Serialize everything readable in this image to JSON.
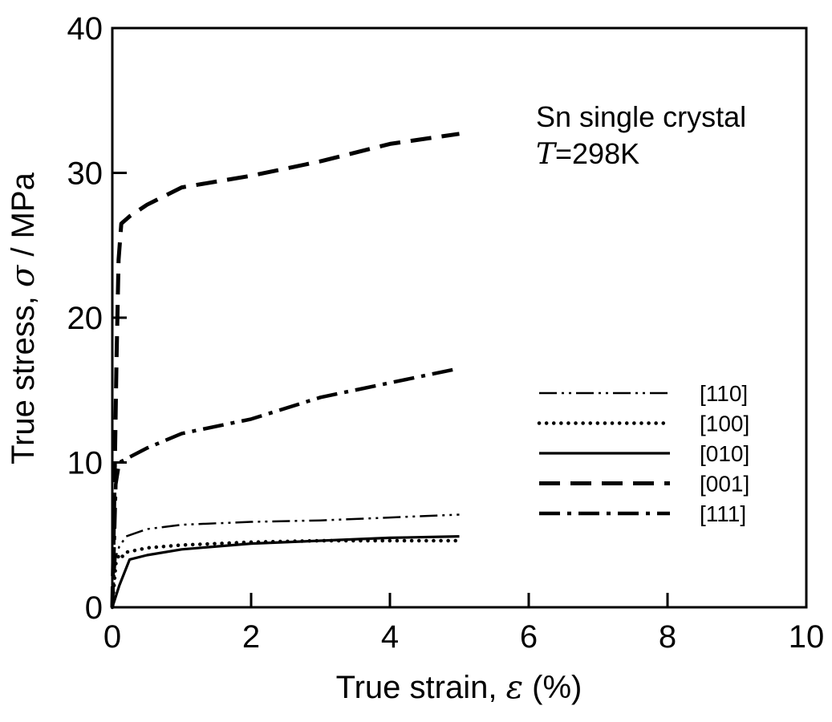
{
  "chart_data": {
    "type": "line",
    "xlabel_prefix": "True strain, ",
    "xlabel_symbol": "ε",
    "xlabel_suffix": " (%)",
    "ylabel_prefix": "True stress, ",
    "ylabel_symbol": "σ",
    "ylabel_suffix": " / MPa",
    "xlim": [
      0,
      10
    ],
    "ylim": [
      0,
      40
    ],
    "xticks": [
      0,
      2,
      4,
      6,
      8,
      10
    ],
    "yticks": [
      0,
      10,
      20,
      30,
      40
    ],
    "grid": false,
    "legend_position": "right",
    "annotation": {
      "line1": "Sn single crystal",
      "line2_symbol": "T",
      "line2_rest": "=298K"
    },
    "series": [
      {
        "name": "[110]",
        "style": "dash-dot-dot",
        "x": [
          0,
          0.05,
          0.1,
          0.2,
          0.5,
          1.0,
          2.0,
          3.0,
          4.0,
          5.0
        ],
        "y": [
          0,
          3.5,
          4.2,
          4.9,
          5.4,
          5.7,
          5.9,
          6.0,
          6.2,
          6.4
        ]
      },
      {
        "name": "[100]",
        "style": "dotted",
        "x": [
          0,
          0.05,
          0.1,
          0.15,
          0.2,
          0.3,
          0.5,
          1.0,
          2.0,
          3.0,
          4.0,
          5.0
        ],
        "y": [
          0,
          3.0,
          3.7,
          3.5,
          3.8,
          3.9,
          4.1,
          4.3,
          4.5,
          4.6,
          4.6,
          4.6
        ]
      },
      {
        "name": "[010]",
        "style": "solid",
        "x": [
          0,
          0.1,
          0.25,
          0.5,
          1.0,
          2.0,
          3.0,
          4.0,
          5.0
        ],
        "y": [
          0,
          1.5,
          3.3,
          3.6,
          4.0,
          4.4,
          4.6,
          4.8,
          4.9
        ]
      },
      {
        "name": "[001]",
        "style": "dashed",
        "x": [
          0,
          0.03,
          0.06,
          0.09,
          0.13,
          0.25,
          0.5,
          1.0,
          2.0,
          3.0,
          4.0,
          5.0
        ],
        "y": [
          0,
          8.0,
          17.0,
          24.0,
          26.5,
          27.0,
          27.8,
          29.0,
          29.8,
          30.8,
          32.0,
          32.7
        ]
      },
      {
        "name": "[111]",
        "style": "dash-dot",
        "x": [
          0,
          0.03,
          0.05,
          0.1,
          0.5,
          1.0,
          2.0,
          3.0,
          4.0,
          5.0
        ],
        "y": [
          0,
          5.0,
          8.5,
          10.0,
          11.0,
          12.0,
          13.0,
          14.5,
          15.5,
          16.5
        ]
      }
    ]
  }
}
